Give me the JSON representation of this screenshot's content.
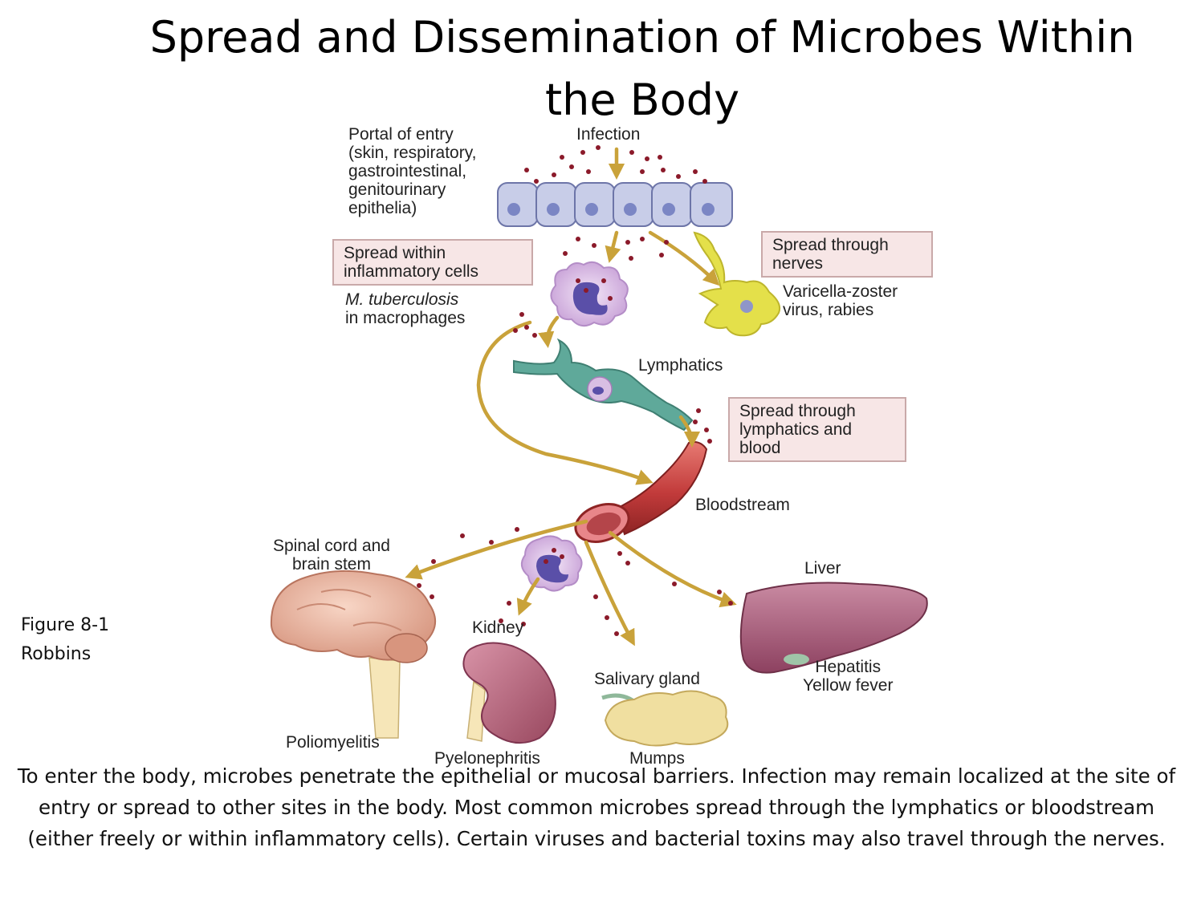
{
  "title": "Spread and Dissemination of Microbes Within the Body",
  "figure": {
    "infection": "Infection",
    "portal_of_entry": [
      "Portal of entry",
      "(skin, respiratory,",
      "gastrointestinal,",
      "genitourinary",
      "epithelia)"
    ],
    "box_inflammatory": [
      "Spread within",
      "inflammatory cells"
    ],
    "mtb_italic": "M. tuberculosis",
    "mtb_rest": "in macrophages",
    "box_nerves": [
      "Spread through",
      "nerves"
    ],
    "varicella": [
      "Varicella-zoster",
      "virus, rabies"
    ],
    "lymphatics": "Lymphatics",
    "box_lymph_blood": [
      "Spread through",
      "lymphatics and",
      "blood"
    ],
    "bloodstream": "Bloodstream",
    "spinal": [
      "Spinal cord and",
      "brain stem"
    ],
    "liver": "Liver",
    "kidney": "Kidney",
    "salivary": "Salivary gland",
    "hepatitis": [
      "Hepatitis",
      "Yellow fever"
    ],
    "poliomyelitis": "Poliomyelitis",
    "pyelonephritis": "Pyelonephritis",
    "mumps": "Mumps"
  },
  "figure_ref": [
    "Figure 8-1",
    "Robbins"
  ],
  "caption": "To enter the body, microbes penetrate the epithelial or mucosal barriers.  Infection may remain localized at the site of entry or spread to other sites in the body.  Most common microbes spread through the lymphatics or bloodstream (either freely or within inflammatory cells).  Certain viruses and bacterial toxins may also travel through the nerves.",
  "colors": {
    "arrow": "#c9a23a",
    "microbe": "#8b1a2a",
    "epithelium": "#c8cde8",
    "nucleus": "#7b86c4",
    "vessel": "#c23b3b",
    "lymph": "#5fa99a",
    "macrophage": "#d9bfe3",
    "neuron": "#e4e04a",
    "liver": "#a9587a",
    "kidney": "#b86a82",
    "brain": "#efb8a0",
    "salivary": "#f0dfa0"
  }
}
